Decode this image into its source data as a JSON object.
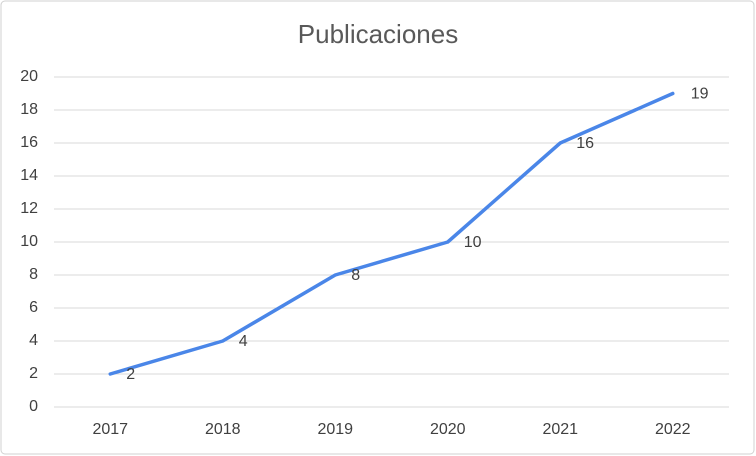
{
  "chart_data": {
    "type": "line",
    "title": "Publicaciones",
    "categories": [
      "2017",
      "2018",
      "2019",
      "2020",
      "2021",
      "2022"
    ],
    "values": [
      2,
      4,
      8,
      10,
      16,
      19
    ],
    "color": "#4a86e8",
    "ylim": [
      0,
      20
    ],
    "yticks": [
      0,
      2,
      4,
      6,
      8,
      10,
      12,
      14,
      16,
      18,
      20
    ],
    "grid": true,
    "data_labels": true
  }
}
